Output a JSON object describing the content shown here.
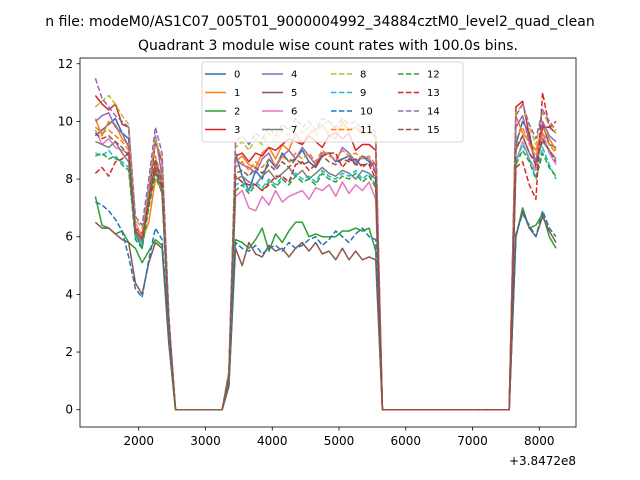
{
  "figure": {
    "suptitle": "n file: modeM0/AS1C07_005T01_9000004992_34884cztM0_level2_quad_clean",
    "title": "Quadrant 3 module wise count rates with 100.0s bins."
  },
  "chart_data": {
    "type": "line",
    "title": "Quadrant 3 module wise count rates with 100.0s bins.",
    "xlabel": "",
    "ylabel": "",
    "x_offset_label": "+3.8472e8",
    "xlim": [
      1120,
      8550
    ],
    "ylim": [
      -0.6,
      12.2
    ],
    "x_ticks": [
      2000,
      3000,
      4000,
      5000,
      6000,
      7000,
      8000
    ],
    "y_ticks": [
      0,
      2,
      4,
      6,
      8,
      10,
      12
    ],
    "legend": {
      "placement": "top-center",
      "columns": 4
    },
    "x": [
      1350,
      1450,
      1550,
      1650,
      1750,
      1850,
      1950,
      2050,
      2150,
      2250,
      2350,
      2450,
      2550,
      2650,
      2750,
      2850,
      2950,
      3050,
      3150,
      3250,
      3350,
      3450,
      3550,
      3650,
      3750,
      3850,
      3950,
      4050,
      4150,
      4250,
      4350,
      4450,
      4550,
      4650,
      4750,
      4850,
      4950,
      5050,
      5150,
      5250,
      5350,
      5450,
      5550,
      5650,
      5750,
      5850,
      5950,
      6050,
      6150,
      6250,
      6350,
      6450,
      6550,
      6650,
      6750,
      6850,
      6950,
      7050,
      7150,
      7250,
      7350,
      7450,
      7550,
      7650,
      7750,
      7850,
      7950,
      8050,
      8150,
      8250
    ],
    "series": [
      {
        "name": "0",
        "color": "#1f77b4",
        "dash": false,
        "values": [
          9.5,
          9.7,
          9.9,
          10.1,
          9.6,
          9.4,
          6.1,
          5.6,
          7.2,
          8.3,
          7.5,
          2.9,
          0,
          0,
          0,
          0,
          0,
          0,
          0,
          0,
          1.1,
          8.9,
          8.1,
          7.6,
          8.3,
          8.0,
          8.7,
          8.4,
          8.9,
          8.6,
          8.7,
          9.0,
          8.6,
          8.4,
          8.8,
          8.9,
          8.6,
          8.7,
          8.8,
          8.5,
          8.8,
          8.6,
          8.5,
          0,
          0,
          0,
          0,
          0,
          0,
          0,
          0,
          0,
          0,
          0,
          0,
          0,
          0,
          0,
          0,
          0,
          0,
          0,
          0,
          9.2,
          10.0,
          9.6,
          8.5,
          9.9,
          9.2,
          9.1
        ]
      },
      {
        "name": "1",
        "color": "#ff7f0e",
        "dash": false,
        "values": [
          10.1,
          9.5,
          10.0,
          9.9,
          9.4,
          9.2,
          6.3,
          5.9,
          6.5,
          8.0,
          7.6,
          3.0,
          0,
          0,
          0,
          0,
          0,
          0,
          0,
          0,
          1.2,
          8.6,
          8.8,
          8.5,
          8.4,
          8.9,
          9.1,
          8.7,
          9.2,
          9.0,
          9.6,
          9.2,
          9.6,
          9.7,
          9.9,
          9.5,
          9.4,
          10.0,
          9.7,
          9.8,
          9.6,
          9.6,
          9.5,
          0,
          0,
          0,
          0,
          0,
          0,
          0,
          0,
          0,
          0,
          0,
          0,
          0,
          0,
          0,
          0,
          0,
          0,
          0,
          0,
          10.2,
          9.6,
          9.3,
          9.0,
          9.8,
          9.4,
          9.0
        ]
      },
      {
        "name": "2",
        "color": "#2ca02c",
        "dash": false,
        "values": [
          7.4,
          6.4,
          6.3,
          6.1,
          6.2,
          5.8,
          5.6,
          5.1,
          5.5,
          5.9,
          5.7,
          2.4,
          0,
          0,
          0,
          0,
          0,
          0,
          0,
          0,
          0.9,
          5.9,
          5.8,
          5.6,
          5.9,
          6.3,
          5.5,
          6.1,
          5.8,
          6.2,
          6.5,
          6.5,
          6.0,
          6.1,
          6.0,
          6.0,
          6.0,
          6.2,
          6.2,
          6.3,
          6.2,
          6.3,
          5.5,
          0,
          0,
          0,
          0,
          0,
          0,
          0,
          0,
          0,
          0,
          0,
          0,
          0,
          0,
          0,
          0,
          0,
          0,
          0,
          0,
          6.0,
          7.0,
          6.3,
          6.4,
          6.8,
          6.0,
          5.6
        ]
      },
      {
        "name": "3",
        "color": "#d62728",
        "dash": false,
        "values": [
          10.9,
          10.6,
          10.4,
          10.6,
          9.9,
          9.8,
          6.3,
          6.1,
          7.4,
          9.3,
          8.6,
          3.2,
          0,
          0,
          0,
          0,
          0,
          0,
          0,
          0,
          1.3,
          8.8,
          8.9,
          8.6,
          8.9,
          8.8,
          9.1,
          9.0,
          9.2,
          9.4,
          9.3,
          9.2,
          9.5,
          9.3,
          9.1,
          9.5,
          9.6,
          9.4,
          9.6,
          9.0,
          9.2,
          9.2,
          9.0,
          0,
          0,
          0,
          0,
          0,
          0,
          0,
          0,
          0,
          0,
          0,
          0,
          0,
          0,
          0,
          0,
          0,
          0,
          0,
          0,
          10.5,
          10.7,
          9.5,
          8.4,
          9.8,
          9.8,
          9.6
        ]
      },
      {
        "name": "4",
        "color": "#9467bd",
        "dash": false,
        "values": [
          10.0,
          10.2,
          10.3,
          9.8,
          9.6,
          9.1,
          6.1,
          6.0,
          7.7,
          9.5,
          8.1,
          3.1,
          0,
          0,
          0,
          0,
          0,
          0,
          0,
          0,
          1.2,
          8.7,
          8.5,
          8.4,
          8.2,
          8.7,
          8.9,
          8.4,
          8.8,
          9.0,
          8.7,
          9.1,
          8.8,
          8.5,
          8.9,
          8.9,
          8.6,
          9.1,
          8.9,
          8.6,
          8.8,
          8.7,
          8.3,
          0,
          0,
          0,
          0,
          0,
          0,
          0,
          0,
          0,
          0,
          0,
          0,
          0,
          0,
          0,
          0,
          0,
          0,
          0,
          0,
          9.8,
          10.2,
          9.3,
          8.6,
          10.0,
          9.5,
          9.3
        ]
      },
      {
        "name": "5",
        "color": "#8c564b",
        "dash": false,
        "values": [
          6.5,
          6.3,
          6.3,
          6.1,
          5.9,
          5.8,
          4.4,
          4.0,
          5.1,
          5.8,
          5.6,
          2.3,
          0,
          0,
          0,
          0,
          0,
          0,
          0,
          0,
          0.8,
          5.6,
          5.0,
          5.8,
          5.4,
          5.3,
          5.7,
          5.5,
          5.6,
          5.3,
          5.6,
          5.8,
          5.5,
          5.8,
          5.4,
          5.5,
          5.2,
          5.6,
          5.2,
          5.5,
          5.2,
          5.3,
          5.2,
          0,
          0,
          0,
          0,
          0,
          0,
          0,
          0,
          0,
          0,
          0,
          0,
          0,
          0,
          0,
          0,
          0,
          0,
          0,
          0,
          6.0,
          6.9,
          6.3,
          6.0,
          6.7,
          6.2,
          5.8
        ]
      },
      {
        "name": "6",
        "color": "#e377c2",
        "dash": false,
        "values": [
          9.7,
          9.2,
          9.4,
          9.1,
          9.0,
          8.9,
          6.5,
          6.0,
          7.1,
          8.5,
          7.7,
          3.0,
          0,
          0,
          0,
          0,
          0,
          0,
          0,
          0,
          1.1,
          7.4,
          7.6,
          7.0,
          6.9,
          7.4,
          7.1,
          7.6,
          7.2,
          7.4,
          7.5,
          7.6,
          7.3,
          7.7,
          7.6,
          7.8,
          7.4,
          7.9,
          7.5,
          7.8,
          7.6,
          7.9,
          7.3,
          0,
          0,
          0,
          0,
          0,
          0,
          0,
          0,
          0,
          0,
          0,
          0,
          0,
          0,
          0,
          0,
          0,
          0,
          0,
          0,
          8.6,
          9.3,
          8.7,
          8.3,
          9.6,
          8.9,
          8.5
        ]
      },
      {
        "name": "7",
        "color": "#7f7f7f",
        "dash": false,
        "values": [
          9.3,
          9.2,
          9.1,
          9.3,
          8.9,
          8.6,
          6.1,
          5.8,
          7.3,
          8.6,
          7.9,
          3.0,
          0,
          0,
          0,
          0,
          0,
          0,
          0,
          0,
          1.1,
          8.0,
          8.1,
          7.9,
          7.8,
          8.1,
          8.3,
          8.0,
          8.2,
          8.4,
          8.1,
          8.3,
          8.0,
          8.2,
          8.4,
          8.2,
          8.1,
          8.3,
          8.2,
          8.0,
          8.3,
          8.2,
          8.0,
          0,
          0,
          0,
          0,
          0,
          0,
          0,
          0,
          0,
          0,
          0,
          0,
          0,
          0,
          0,
          0,
          0,
          0,
          0,
          0,
          9.0,
          9.5,
          8.9,
          8.6,
          9.3,
          9.0,
          8.7
        ]
      },
      {
        "name": "8",
        "color": "#bcbd22",
        "dash": true,
        "values": [
          10.5,
          10.7,
          10.9,
          10.6,
          10.2,
          9.9,
          6.6,
          6.3,
          7.8,
          9.4,
          8.7,
          3.2,
          0,
          0,
          0,
          0,
          0,
          0,
          0,
          0,
          1.3,
          9.1,
          9.3,
          9.0,
          9.4,
          9.2,
          9.6,
          9.3,
          9.7,
          9.5,
          9.9,
          9.6,
          9.8,
          9.5,
          9.9,
          10.0,
          9.7,
          9.9,
          9.6,
          9.8,
          9.5,
          9.7,
          9.4,
          0,
          0,
          0,
          0,
          0,
          0,
          0,
          0,
          0,
          0,
          0,
          0,
          0,
          0,
          0,
          0,
          0,
          0,
          0,
          0,
          10.3,
          10.6,
          9.8,
          9.2,
          10.3,
          9.9,
          9.6
        ]
      },
      {
        "name": "9",
        "color": "#17becf",
        "dash": true,
        "values": [
          8.9,
          8.8,
          9.0,
          8.7,
          8.6,
          8.4,
          6.0,
          5.7,
          7.1,
          8.3,
          7.6,
          2.9,
          0,
          0,
          0,
          0,
          0,
          0,
          0,
          0,
          1.1,
          7.8,
          7.9,
          7.6,
          7.9,
          7.7,
          8.0,
          7.8,
          8.1,
          7.9,
          8.2,
          8.0,
          8.1,
          7.9,
          8.3,
          8.1,
          8.0,
          8.2,
          8.1,
          8.3,
          8.0,
          8.2,
          7.8,
          0,
          0,
          0,
          0,
          0,
          0,
          0,
          0,
          0,
          0,
          0,
          0,
          0,
          0,
          0,
          0,
          0,
          0,
          0,
          0,
          8.6,
          9.2,
          8.7,
          8.1,
          9.1,
          8.5,
          8.0
        ]
      },
      {
        "name": "10",
        "color": "#1f77b4",
        "dash": true,
        "values": [
          7.2,
          7.1,
          6.9,
          6.6,
          6.2,
          5.3,
          4.2,
          3.9,
          5.2,
          6.3,
          5.9,
          2.4,
          0,
          0,
          0,
          0,
          0,
          0,
          0,
          0,
          0.9,
          5.8,
          5.6,
          5.5,
          5.7,
          5.4,
          5.6,
          5.7,
          5.5,
          5.8,
          5.6,
          5.7,
          5.9,
          6.0,
          5.7,
          5.9,
          6.2,
          6.0,
          5.8,
          6.1,
          6.3,
          6.0,
          5.9,
          0,
          0,
          0,
          0,
          0,
          0,
          0,
          0,
          0,
          0,
          0,
          0,
          0,
          0,
          0,
          0,
          0,
          0,
          0,
          0,
          6.1,
          6.8,
          6.4,
          6.0,
          6.9,
          6.3,
          6.0
        ]
      },
      {
        "name": "11",
        "color": "#ff7f0e",
        "dash": true,
        "values": [
          9.8,
          9.6,
          9.7,
          9.5,
          9.3,
          9.0,
          6.3,
          6.0,
          7.4,
          8.8,
          8.0,
          3.1,
          0,
          0,
          0,
          0,
          0,
          0,
          0,
          0,
          1.2,
          8.4,
          8.6,
          8.3,
          8.6,
          8.4,
          8.7,
          8.5,
          8.8,
          8.6,
          8.9,
          8.7,
          8.9,
          8.6,
          9.0,
          8.8,
          8.7,
          9.0,
          8.8,
          8.9,
          8.7,
          8.8,
          8.5,
          0,
          0,
          0,
          0,
          0,
          0,
          0,
          0,
          0,
          0,
          0,
          0,
          0,
          0,
          0,
          0,
          0,
          0,
          0,
          0,
          9.4,
          9.8,
          9.2,
          8.8,
          9.6,
          9.2,
          8.9
        ]
      },
      {
        "name": "12",
        "color": "#2ca02c",
        "dash": true,
        "values": [
          8.8,
          8.9,
          8.7,
          8.8,
          8.5,
          8.3,
          5.9,
          5.6,
          7.0,
          8.2,
          7.5,
          2.9,
          0,
          0,
          0,
          0,
          0,
          0,
          0,
          0,
          1.1,
          7.6,
          7.8,
          7.5,
          7.8,
          7.6,
          7.9,
          7.7,
          8.0,
          7.8,
          8.1,
          7.9,
          8.0,
          7.8,
          8.2,
          8.0,
          7.9,
          8.1,
          8.0,
          8.2,
          7.9,
          8.1,
          7.7,
          0,
          0,
          0,
          0,
          0,
          0,
          0,
          0,
          0,
          0,
          0,
          0,
          0,
          0,
          0,
          0,
          0,
          0,
          0,
          0,
          8.5,
          9.0,
          8.6,
          8.0,
          8.9,
          8.4,
          8.1
        ]
      },
      {
        "name": "13",
        "color": "#d62728",
        "dash": true,
        "values": [
          8.2,
          8.4,
          8.1,
          8.6,
          8.7,
          8.9,
          6.2,
          5.9,
          7.2,
          8.4,
          7.7,
          3.0,
          0,
          0,
          0,
          0,
          0,
          0,
          0,
          0,
          1.2,
          8.1,
          7.9,
          7.8,
          7.8,
          7.6,
          7.8,
          8.1,
          8.1,
          7.9,
          8.5,
          8.6,
          8.3,
          8.5,
          8.8,
          8.9,
          8.9,
          8.4,
          8.7,
          8.5,
          8.5,
          8.5,
          8.0,
          0,
          0,
          0,
          0,
          0,
          0,
          0,
          0,
          0,
          0,
          0,
          0,
          0,
          0,
          0,
          0,
          0,
          0,
          0,
          0,
          8.4,
          8.6,
          7.8,
          7.3,
          11.0,
          9.8,
          10.0
        ]
      },
      {
        "name": "14",
        "color": "#9467bd",
        "dash": true,
        "values": [
          11.5,
          10.8,
          10.5,
          10.2,
          10.0,
          9.8,
          6.7,
          6.4,
          8.0,
          9.8,
          8.9,
          3.3,
          0,
          0,
          0,
          0,
          0,
          0,
          0,
          0,
          1.3,
          9.3,
          9.5,
          9.2,
          9.6,
          9.4,
          9.8,
          9.5,
          9.9,
          9.7,
          10.1,
          9.8,
          10.0,
          9.7,
          10.1,
          10.0,
          9.8,
          10.1,
          9.9,
          10.0,
          9.7,
          9.9,
          9.6,
          0,
          0,
          0,
          0,
          0,
          0,
          0,
          0,
          0,
          0,
          0,
          0,
          0,
          0,
          0,
          0,
          0,
          0,
          0,
          0,
          10.2,
          10.6,
          9.9,
          9.4,
          10.4,
          10.0,
          9.7
        ]
      },
      {
        "name": "15",
        "color": "#8c564b",
        "dash": true,
        "values": [
          9.6,
          9.4,
          9.5,
          9.3,
          9.1,
          8.8,
          6.2,
          5.9,
          7.3,
          8.7,
          7.9,
          3.0,
          0,
          0,
          0,
          0,
          0,
          0,
          0,
          0,
          1.2,
          8.2,
          8.3,
          8.1,
          8.4,
          8.2,
          8.5,
          8.3,
          8.6,
          8.4,
          8.7,
          8.5,
          8.6,
          8.4,
          8.8,
          8.6,
          8.5,
          8.7,
          8.6,
          8.7,
          8.4,
          8.6,
          8.2,
          0,
          0,
          0,
          0,
          0,
          0,
          0,
          0,
          0,
          0,
          0,
          0,
          0,
          0,
          0,
          0,
          0,
          0,
          0,
          0,
          9.1,
          9.5,
          8.9,
          8.5,
          9.4,
          9.0,
          8.6
        ]
      }
    ]
  }
}
